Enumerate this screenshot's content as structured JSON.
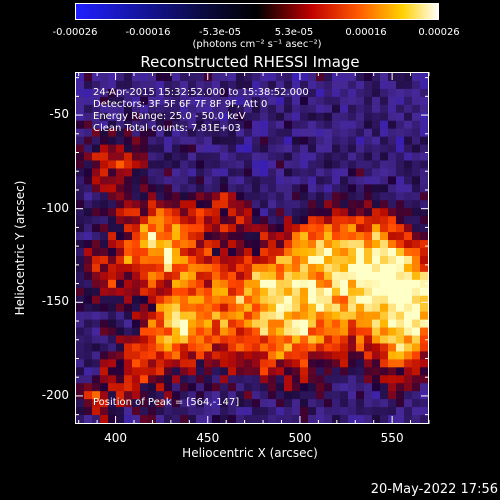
{
  "colorbar": {
    "ticks": [
      "-0.00026",
      "-0.00016",
      "-5.3e-05",
      "5.3e-05",
      "0.00016",
      "0.00026"
    ],
    "unit": "(photons cm⁻² s⁻¹ asec⁻²)",
    "colors": [
      "#0000ff",
      "#000000",
      "#ff0000",
      "#ffff00",
      "#ffffff"
    ]
  },
  "chart_data": {
    "type": "heatmap",
    "title": "Reconstructed RHESSI Image",
    "xlabel": "Heliocentric X (arcsec)",
    "ylabel": "Heliocentric Y (arcsec)",
    "xlim": [
      378,
      570
    ],
    "ylim": [
      -215,
      -27
    ],
    "xticks": [
      400,
      450,
      500,
      550
    ],
    "yticks": [
      -50,
      -100,
      -150,
      -200
    ],
    "peak": [
      564,
      -147
    ],
    "annotations": [
      "24-Apr-2015 15:32:52.000 to 15:38:52.000",
      "Detectors: 3F 5F 6F 7F 8F 9F, Att 0",
      "Energy Range: 25.0 - 50.0 keV",
      "Clean    Total counts: 7.81E+03"
    ],
    "peak_label": "Position of Peak = [564,-147]"
  },
  "footer_date": "20-May-2022 17:56"
}
